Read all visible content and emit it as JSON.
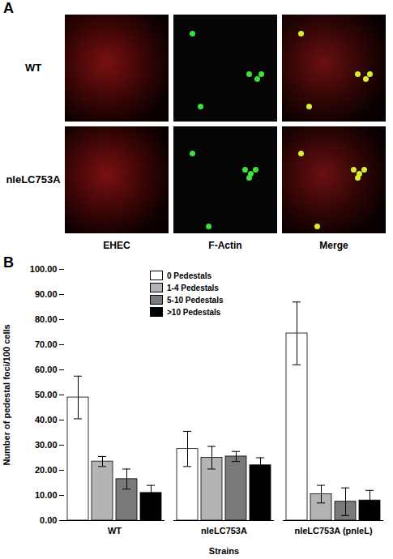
{
  "panel_labels": [
    "A",
    "B"
  ],
  "images": {
    "rows": [
      "WT",
      "nleLC753A"
    ],
    "columns": [
      "EHEC",
      "F-Actin",
      "Merge"
    ]
  },
  "chart_data": {
    "type": "bar",
    "categories": [
      "WT",
      "nleLC753A",
      "nleLC753A (pnleL)"
    ],
    "series": [
      {
        "name": "0 Pedestals",
        "color": "#ffffff",
        "values": [
          49,
          28.5,
          74.5
        ],
        "errors": [
          8.5,
          7,
          12.5
        ]
      },
      {
        "name": "1-4 Pedestals",
        "color": "#b4b4b4",
        "values": [
          23.5,
          25,
          10.5
        ],
        "errors": [
          2,
          4.5,
          3.5
        ]
      },
      {
        "name": "5-10 Pedestals",
        "color": "#7a7a7a",
        "values": [
          16.5,
          25.5,
          7.5
        ],
        "errors": [
          4,
          2,
          5.5
        ]
      },
      {
        "name": ">10 Pedestals",
        "color": "#000000",
        "values": [
          11,
          22,
          8
        ],
        "errors": [
          3,
          3,
          4
        ]
      }
    ],
    "x_label": "Strains",
    "y_label": "Number of pedestal foci/100 cells",
    "ylim": [
      0,
      100
    ],
    "yticks": [
      {
        "value": 0,
        "label": "0.00"
      },
      {
        "value": 10,
        "label": "10.00"
      },
      {
        "value": 20,
        "label": "20.00"
      },
      {
        "value": 30,
        "label": "30.00"
      },
      {
        "value": 40,
        "label": "40.00"
      },
      {
        "value": 50,
        "label": "50.00"
      },
      {
        "value": 60,
        "label": "60.00"
      },
      {
        "value": 70,
        "label": "70.00"
      },
      {
        "value": 80,
        "label": "80.00"
      },
      {
        "value": 90,
        "label": "90.00"
      },
      {
        "value": 100,
        "label": "100.00"
      }
    ],
    "legend": "top",
    "grid": false
  }
}
